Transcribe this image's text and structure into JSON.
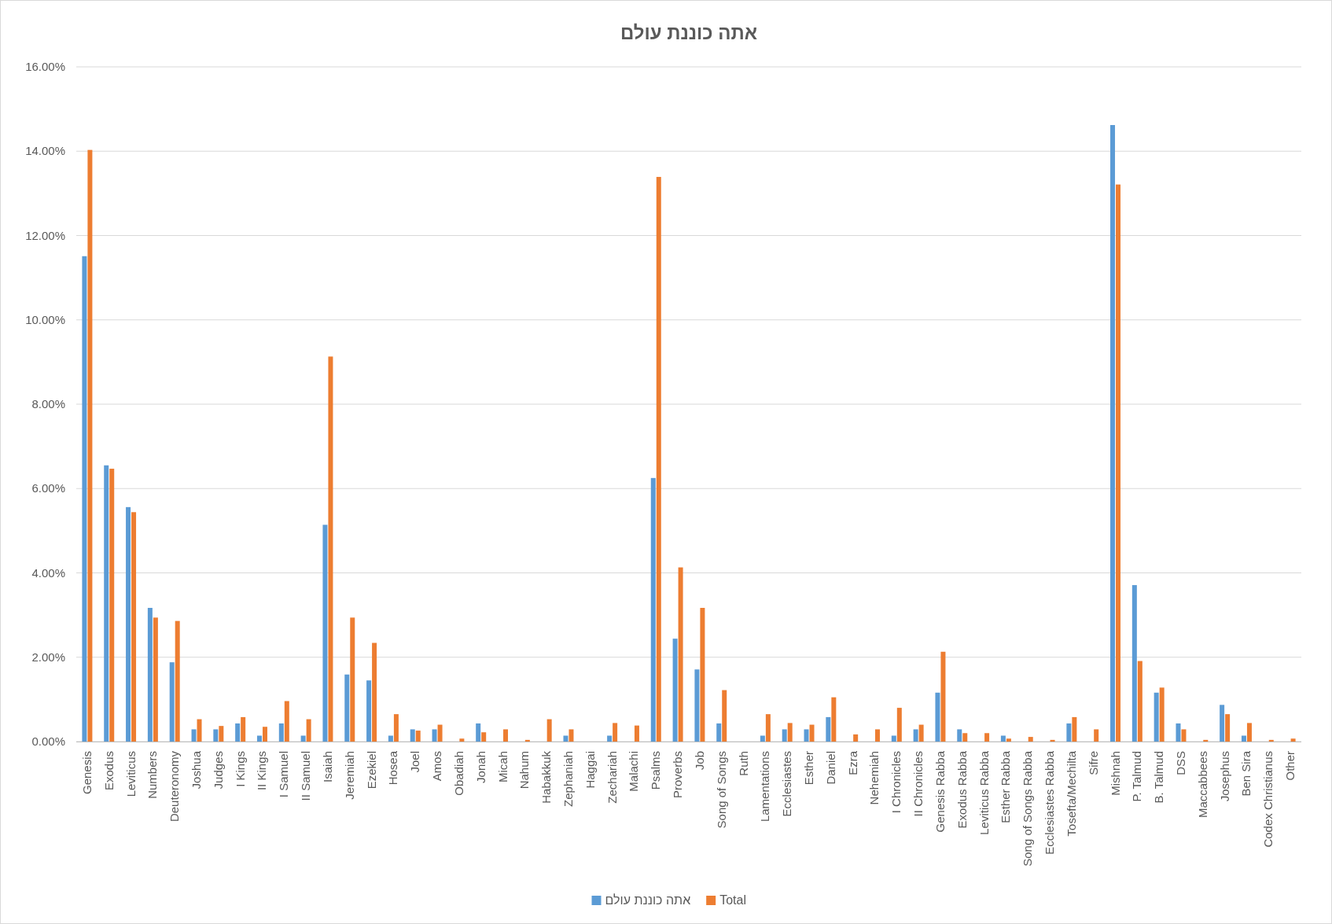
{
  "chart_data": {
    "type": "bar",
    "title": "אתה כוננת עולם",
    "categories": [
      "Genesis",
      "Exodus",
      "Leviticus",
      "Numbers",
      "Deuteronomy",
      "Joshua",
      "Judges",
      "I Kings",
      "II Kings",
      "I Samuel",
      "II Samuel",
      "Isaiah",
      "Jeremiah",
      "Ezekiel",
      "Hosea",
      "Joel",
      "Amos",
      "Obadiah",
      "Jonah",
      "Micah",
      "Nahum",
      "Habakkuk",
      "Zephaniah",
      "Haggai",
      "Zechariah",
      "Malachi",
      "Psalms",
      "Proverbs",
      "Job",
      "Song of Songs",
      "Ruth",
      "Lamentations",
      "Ecclesiastes",
      "Esther",
      "Daniel",
      "Ezra",
      "Nehemiah",
      "I Chronicles",
      "II Chronicles",
      "Genesis Rabba",
      "Exodus Rabba",
      "Leviticus Rabba",
      "Esther Rabba",
      "Song of Songs Rabba",
      "Ecclesiastes Rabba",
      "Tosefta/Mechilta",
      "Sifre",
      "Mishnah",
      "P. Talmud",
      "B. Talmud",
      "DSS",
      "Maccabbees",
      "Josephus",
      "Ben Sira",
      "Codex Christianus",
      "Other"
    ],
    "series": [
      {
        "name": "אתה כוננת עולם",
        "color": "#5b9bd5",
        "values": [
          11.51,
          6.55,
          5.56,
          3.17,
          1.88,
          0.29,
          0.29,
          0.43,
          0.14,
          0.43,
          0.14,
          5.14,
          1.59,
          1.45,
          0.14,
          0.29,
          0.29,
          0,
          0.43,
          0,
          0,
          0,
          0.14,
          0,
          0.14,
          0,
          6.25,
          2.44,
          1.71,
          0.43,
          0,
          0.14,
          0.29,
          0.29,
          0.58,
          0,
          0,
          0.14,
          0.29,
          1.16,
          0.29,
          0,
          0.14,
          0,
          0,
          0.43,
          0,
          14.62,
          3.71,
          1.16,
          0.43,
          0,
          0.87,
          0.14,
          0,
          0
        ]
      },
      {
        "name": "Total",
        "color": "#ed7d31",
        "values": [
          14.03,
          6.47,
          5.44,
          2.94,
          2.86,
          0.53,
          0.37,
          0.58,
          0.35,
          0.96,
          0.53,
          9.13,
          2.94,
          2.34,
          0.65,
          0.26,
          0.4,
          0.07,
          0.22,
          0.29,
          0.04,
          0.53,
          0.29,
          0,
          0.44,
          0.38,
          13.39,
          4.13,
          3.17,
          1.22,
          0,
          0.65,
          0.44,
          0.4,
          1.05,
          0.17,
          0.29,
          0.8,
          0.4,
          2.13,
          0.2,
          0.2,
          0.07,
          0.11,
          0.04,
          0.58,
          0.29,
          13.21,
          1.91,
          1.28,
          0.29,
          0.04,
          0.65,
          0.44,
          0.04,
          0.07
        ]
      }
    ],
    "ylim": [
      0,
      16
    ],
    "yticks": [
      {
        "value": 0,
        "label": "0.00%"
      },
      {
        "value": 2,
        "label": "2.00%"
      },
      {
        "value": 4,
        "label": "4.00%"
      },
      {
        "value": 6,
        "label": "6.00%"
      },
      {
        "value": 8,
        "label": "8.00%"
      },
      {
        "value": 10,
        "label": "10.00%"
      },
      {
        "value": 12,
        "label": "12.00%"
      },
      {
        "value": 14,
        "label": "14.00%"
      },
      {
        "value": 16,
        "label": "16.00%"
      }
    ],
    "grid": "y",
    "legend": "bottom"
  }
}
